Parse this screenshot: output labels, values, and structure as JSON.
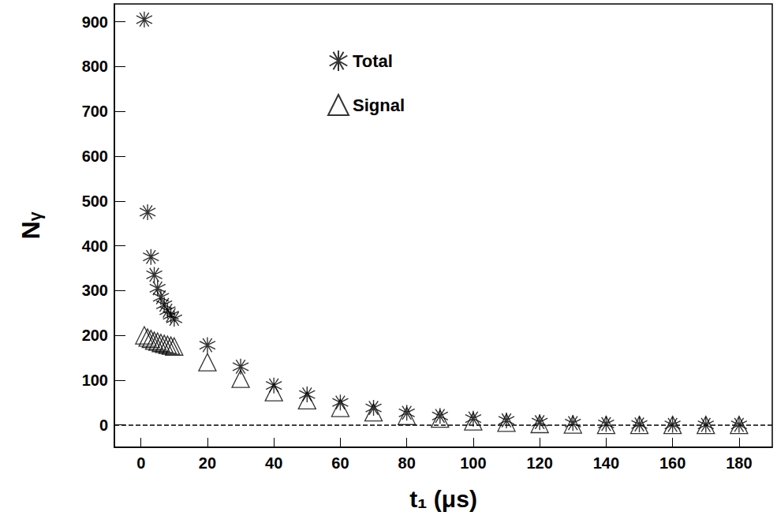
{
  "chart_data": {
    "type": "scatter",
    "xlabel": "t₁ (μs)",
    "ylabel": "Nᵧ",
    "xlim": [
      -8,
      190
    ],
    "xticks": [
      0,
      20,
      40,
      60,
      80,
      100,
      120,
      140,
      160,
      180
    ],
    "ylim": [
      -50,
      940
    ],
    "yticks": [
      0,
      100,
      200,
      300,
      400,
      500,
      600,
      700,
      800,
      900
    ],
    "grid": false,
    "legend": "top",
    "hlines": [
      0
    ],
    "x": [
      1,
      2,
      3,
      4,
      5,
      6,
      7,
      8,
      9,
      10,
      20,
      30,
      40,
      50,
      60,
      70,
      80,
      90,
      100,
      110,
      120,
      130,
      140,
      150,
      160,
      170,
      180
    ],
    "series": [
      {
        "name": "Total",
        "color": "#000000",
        "marker": "asterisk",
        "values": [
          905,
          475,
          375,
          335,
          305,
          285,
          268,
          255,
          245,
          237,
          178,
          130,
          88,
          68,
          50,
          38,
          27,
          20,
          14,
          10,
          6,
          4,
          2,
          1,
          0,
          0,
          0
        ]
      },
      {
        "name": "Signal",
        "color": "#000000",
        "marker": "triangle",
        "values": [
          200,
          195,
          192,
          188,
          186,
          183,
          181,
          179,
          177,
          175,
          140,
          103,
          73,
          55,
          38,
          28,
          20,
          14,
          8,
          5,
          2,
          1,
          0,
          0,
          0,
          0,
          0
        ]
      }
    ]
  }
}
